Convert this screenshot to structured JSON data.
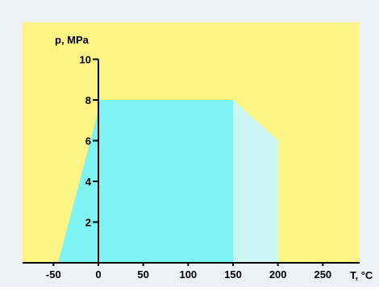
{
  "chart_data": {
    "type": "area",
    "title": "",
    "xlabel": "T, °C",
    "ylabel": "p, MPa",
    "xlim": [
      -55,
      290
    ],
    "ylim": [
      0,
      10
    ],
    "x_ticks": [
      -50,
      0,
      50,
      100,
      150,
      200,
      250
    ],
    "y_ticks": [
      2,
      4,
      6,
      8,
      10
    ],
    "grid": false,
    "regions": [
      {
        "fill": "#7ff4f4",
        "points": [
          [
            -45,
            0
          ],
          [
            0,
            7.5
          ],
          [
            0,
            8
          ],
          [
            150,
            8
          ],
          [
            150,
            0
          ]
        ]
      },
      {
        "fill": "#ccf6f6",
        "points": [
          [
            150,
            0
          ],
          [
            150,
            8
          ],
          [
            200,
            6
          ],
          [
            200,
            0
          ]
        ]
      }
    ],
    "colors": {
      "plot_background": "#fcf585",
      "axis": "#000000"
    }
  }
}
